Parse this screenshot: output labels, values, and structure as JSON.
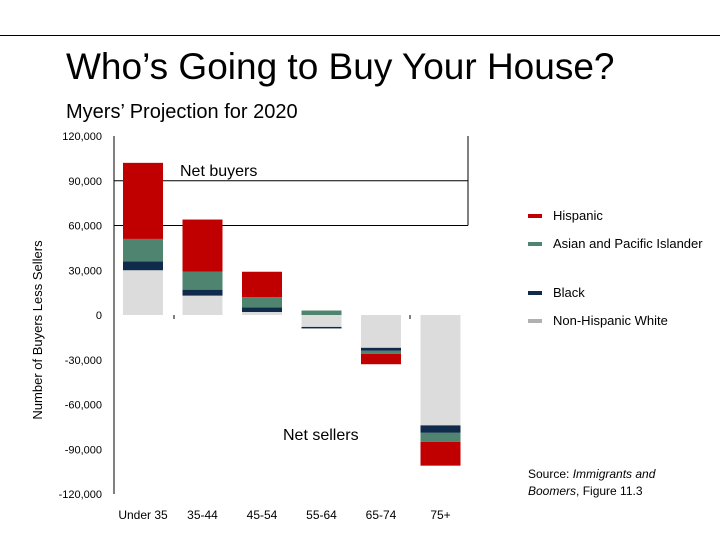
{
  "title": "Who’s Going to Buy Your House?",
  "subtitle": "Myers’ Projection for 2020",
  "chart_data": {
    "type": "bar",
    "stacked": true,
    "categories": [
      "Under 35",
      "35-44",
      "45-54",
      "55-64",
      "65-74",
      "75+"
    ],
    "ylabel": "Number of Buyers Less Sellers",
    "ylim": [
      -120000,
      120000
    ],
    "yticks": [
      120000,
      90000,
      60000,
      30000,
      0,
      -30000,
      -60000,
      -90000,
      -120000
    ],
    "ytick_labels": [
      "120,000",
      "90,000",
      "60,000",
      "30,000",
      "0",
      "-30,000",
      "-60,000",
      "-90,000",
      "-120,000"
    ],
    "reference_lines": [
      90000,
      60000
    ],
    "series": [
      {
        "name": "Non-Hispanic White",
        "color": "#dcdcdc",
        "values": [
          30000,
          13000,
          2000,
          -8000,
          -22000,
          -74000
        ]
      },
      {
        "name": "Black",
        "color": "#0f2a4a",
        "values": [
          6000,
          4000,
          3000,
          -1000,
          -2000,
          -5000
        ]
      },
      {
        "name": "Asian and Pacific Islander",
        "color": "#4f8470",
        "values": [
          15000,
          12000,
          7000,
          3000,
          -2000,
          -6000
        ]
      },
      {
        "name": "Hispanic",
        "color": "#c00000",
        "values": [
          51000,
          35000,
          17000,
          0,
          -7000,
          -16000
        ]
      }
    ],
    "annotations": [
      "Net buyers",
      "Net sellers"
    ]
  },
  "legend": [
    {
      "name": "Hispanic",
      "color": "#c00000"
    },
    {
      "name": "Asian and Pacific Islander",
      "color": "#4f8470"
    },
    {
      "name": "Black",
      "color": "#0f2a4a"
    },
    {
      "name": "Non-Hispanic White",
      "color": "#b0b0b0"
    }
  ],
  "source": {
    "prefix": "Source: ",
    "title": "Immigrants and Boomers",
    "suffix": ", Figure 11.3"
  }
}
